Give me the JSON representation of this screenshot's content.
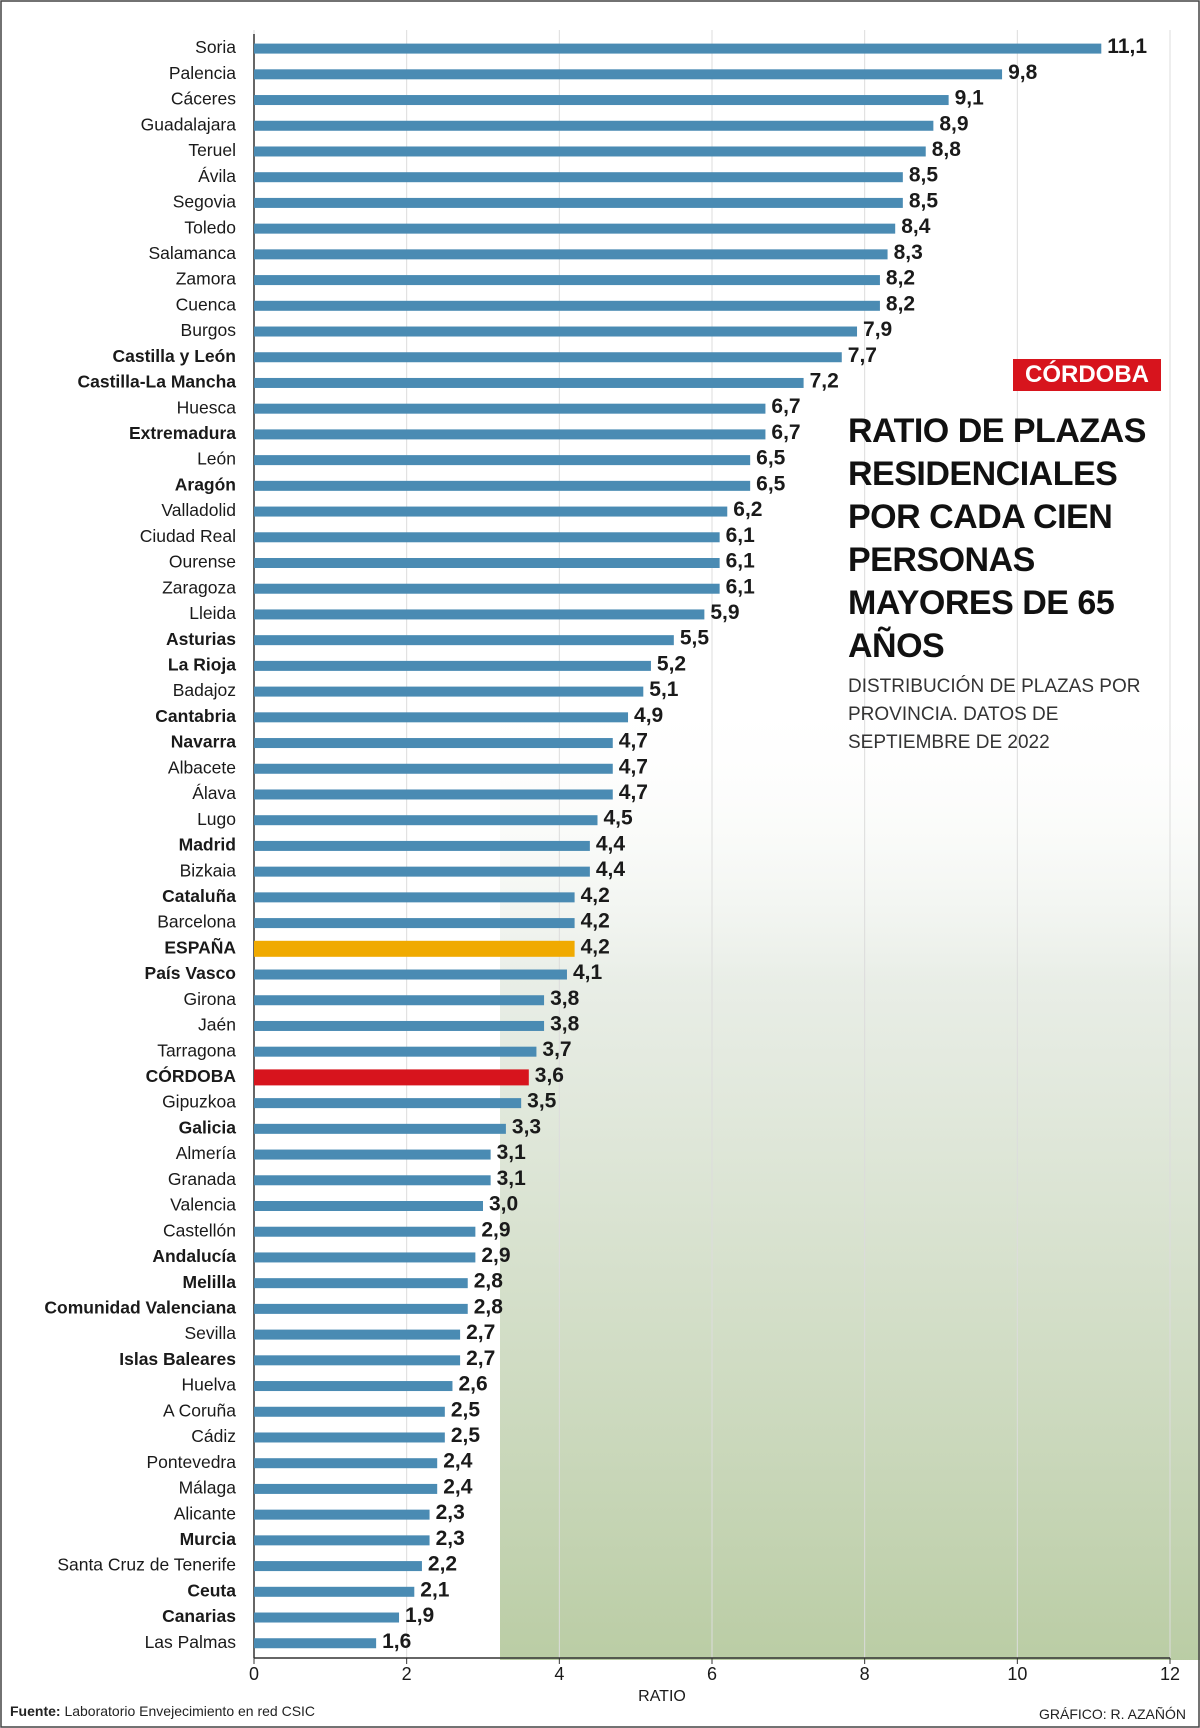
{
  "chart_data": {
    "type": "hbar",
    "title": "RATIO DE PLAZAS RESIDENCIALES POR CADA CIEN PERSONAS MAYORES DE 65 AÑOS",
    "subtitle": "DISTRIBUCIÓN DE PLAZAS POR PROVINCIA. DATOS DE SEPTIEMBRE DE 2022",
    "brand": "CÓRDOBA",
    "x_label": "RATIO",
    "source_label": "Fuente:",
    "source": "Laboratorio Envejecimiento en red CSIC",
    "credit": "GRÁFICO: R. AZAÑÓN",
    "categories": [
      "Soria",
      "Palencia",
      "Cáceres",
      "Guadalajara",
      "Teruel",
      "Ávila",
      "Segovia",
      "Toledo",
      "Salamanca",
      "Zamora",
      "Cuenca",
      "Burgos",
      "Castilla y León",
      "Castilla-La Mancha",
      "Huesca",
      "Extremadura",
      "León",
      "Aragón",
      "Valladolid",
      "Ciudad Real",
      "Ourense",
      "Zaragoza",
      "Lleida",
      "Asturias",
      "La Rioja",
      "Badajoz",
      "Cantabria",
      "Navarra",
      "Albacete",
      "Álava",
      "Lugo",
      "Madrid",
      "Bizkaia",
      "Cataluña",
      "Barcelona",
      "ESPAÑA",
      "País Vasco",
      "Girona",
      "Jaén",
      "Tarragona",
      "CÓRDOBA",
      "Gipuzkoa",
      "Galicia",
      "Almería",
      "Granada",
      "Valencia",
      "Castellón",
      "Andalucía",
      "Melilla",
      "Comunidad Valenciana",
      "Sevilla",
      "Islas Baleares",
      "Huelva",
      "A Coruña",
      "Cádiz",
      "Pontevedra",
      "Málaga",
      "Alicante",
      "Murcia",
      "Santa Cruz de Tenerife",
      "Ceuta",
      "Canarias",
      "Las Palmas"
    ],
    "values": [
      11.1,
      9.8,
      9.1,
      8.9,
      8.8,
      8.5,
      8.5,
      8.4,
      8.3,
      8.2,
      8.2,
      7.9,
      7.7,
      7.2,
      6.7,
      6.7,
      6.5,
      6.5,
      6.2,
      6.1,
      6.1,
      6.1,
      5.9,
      5.5,
      5.2,
      5.1,
      4.9,
      4.7,
      4.7,
      4.7,
      4.5,
      4.4,
      4.4,
      4.2,
      4.2,
      4.2,
      4.1,
      3.8,
      3.8,
      3.7,
      3.6,
      3.5,
      3.3,
      3.1,
      3.1,
      3.0,
      2.9,
      2.9,
      2.8,
      2.8,
      2.7,
      2.7,
      2.6,
      2.5,
      2.5,
      2.4,
      2.4,
      2.3,
      2.3,
      2.2,
      2.1,
      1.9,
      1.6
    ],
    "value_labels": [
      "11,1",
      "9,8",
      "9,1",
      "8,9",
      "8,8",
      "8,5",
      "8,5",
      "8,4",
      "8,3",
      "8,2",
      "8,2",
      "7,9",
      "7,7",
      "7,2",
      "6,7",
      "6,7",
      "6,5",
      "6,5",
      "6,2",
      "6,1",
      "6,1",
      "6,1",
      "5,9",
      "5,5",
      "5,2",
      "5,1",
      "4,9",
      "4,7",
      "4,7",
      "4,7",
      "4,5",
      "4,4",
      "4,4",
      "4,2",
      "4,2",
      "4,2",
      "4,1",
      "3,8",
      "3,8",
      "3,7",
      "3,6",
      "3,5",
      "3,3",
      "3,1",
      "3,1",
      "3,0",
      "2,9",
      "2,9",
      "2,8",
      "2,8",
      "2,7",
      "2,7",
      "2,6",
      "2,5",
      "2,5",
      "2,4",
      "2,4",
      "2,3",
      "2,3",
      "2,2",
      "2,1",
      "1,9",
      "1,6"
    ],
    "color": "#4a8bb3",
    "highlights": [
      {
        "category": 35,
        "color": "#f0aa00"
      },
      {
        "category": 40,
        "color": "#d7141d"
      }
    ],
    "bold": [
      12,
      13,
      15,
      17,
      23,
      24,
      26,
      27,
      31,
      33,
      35,
      36,
      40,
      42,
      47,
      48,
      49,
      51,
      58,
      60,
      61
    ],
    "xlim": [
      0,
      12
    ],
    "xticks": [
      0,
      2,
      4,
      6,
      8,
      10,
      12
    ],
    "grid": true
  }
}
